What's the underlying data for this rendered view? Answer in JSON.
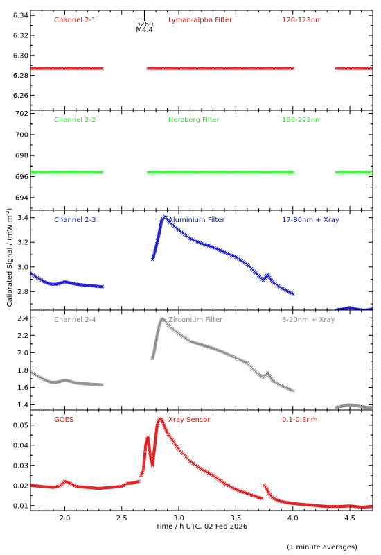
{
  "figure": {
    "ylabel": "Calibrated Signal / (mW m",
    "ylabel_sup": "-2",
    "ylabel_end": ")",
    "xlabel": "Time / h UTC, 02 Feb 2026",
    "footnote": "(1 minute averages)",
    "flare_marker": {
      "x": 2.7,
      "label1": "3260",
      "label2": "M4.4"
    },
    "x_ticks": [
      "2.0",
      "2.5",
      "3.0",
      "3.5",
      "4.0",
      "4.5"
    ],
    "xlim": [
      1.7,
      4.7
    ]
  },
  "chart_data": [
    {
      "type": "scatter",
      "channel": "Channel 2-1",
      "filter": "Lyman-alpha Filter",
      "band": "120-123nm",
      "color": "#dd1111",
      "ylim": [
        6.245,
        6.345
      ],
      "y_ticks": [
        "6.26",
        "6.28",
        "6.30",
        "6.32",
        "6.34"
      ],
      "series": [
        {
          "segments": [
            {
              "x": [
                1.7,
                2.33
              ],
              "y": [
                6.287,
                6.287
              ]
            },
            {
              "x": [
                2.73,
                4.0
              ],
              "y": [
                6.287,
                6.287
              ]
            },
            {
              "x": [
                4.38,
                4.7
              ],
              "y": [
                6.287,
                6.287
              ]
            }
          ]
        }
      ]
    },
    {
      "type": "scatter",
      "channel": "Channel 2-2",
      "filter": "Herzberg Filter",
      "band": "190-222nm",
      "color": "#22ee22",
      "ylim": [
        692.8,
        702.3
      ],
      "y_ticks": [
        "694",
        "696",
        "698",
        "700",
        "702"
      ],
      "series": [
        {
          "segments": [
            {
              "x": [
                1.7,
                2.33
              ],
              "y": [
                696.4,
                696.4
              ]
            },
            {
              "x": [
                2.73,
                4.0
              ],
              "y": [
                696.4,
                696.4
              ]
            },
            {
              "x": [
                4.38,
                4.7
              ],
              "y": [
                696.4,
                696.4
              ]
            }
          ]
        }
      ]
    },
    {
      "type": "scatter",
      "channel": "Channel 2-3",
      "filter": "Aluminium Filter",
      "band": "17-80nm + Xray",
      "color": "#1111cc",
      "ylim": [
        2.65,
        3.46
      ],
      "y_ticks": [
        "2.8",
        "3.0",
        "3.2",
        "3.4"
      ],
      "series": [
        {
          "segments": [
            {
              "x": [
                1.7,
                1.75,
                1.82,
                1.88,
                1.93,
                2.0,
                2.05,
                2.1,
                2.2,
                2.33
              ],
              "y": [
                2.95,
                2.92,
                2.88,
                2.86,
                2.86,
                2.88,
                2.87,
                2.86,
                2.85,
                2.84
              ]
            },
            {
              "x": [
                2.77,
                2.79,
                2.81,
                2.83,
                2.85,
                2.88,
                2.92,
                3.0,
                3.1,
                3.2,
                3.3,
                3.4,
                3.5,
                3.6,
                3.7,
                3.74,
                3.78,
                3.82,
                3.9,
                4.0
              ],
              "y": [
                3.06,
                3.12,
                3.2,
                3.28,
                3.38,
                3.41,
                3.36,
                3.3,
                3.23,
                3.19,
                3.16,
                3.12,
                3.08,
                3.02,
                2.93,
                2.89,
                2.94,
                2.88,
                2.83,
                2.78
              ]
            },
            {
              "x": [
                4.38,
                4.45,
                4.5,
                4.55,
                4.6,
                4.65,
                4.7
              ],
              "y": [
                2.65,
                2.66,
                2.67,
                2.66,
                2.65,
                2.65,
                2.66
              ]
            }
          ]
        }
      ]
    },
    {
      "type": "scatter",
      "channel": "Channel 2-4",
      "filter": "Zirconium Filter",
      "band": "6-20nm + Xray",
      "color": "#888888",
      "ylim": [
        1.34,
        2.49
      ],
      "y_ticks": [
        "1.4",
        "1.6",
        "1.8",
        "2.0",
        "2.2",
        "2.4"
      ],
      "series": [
        {
          "segments": [
            {
              "x": [
                1.7,
                1.75,
                1.82,
                1.88,
                1.93,
                2.0,
                2.05,
                2.1,
                2.2,
                2.33
              ],
              "y": [
                1.78,
                1.74,
                1.69,
                1.66,
                1.66,
                1.68,
                1.67,
                1.65,
                1.64,
                1.63
              ]
            },
            {
              "x": [
                2.77,
                2.79,
                2.81,
                2.83,
                2.85,
                2.88,
                2.92,
                3.0,
                3.1,
                3.2,
                3.3,
                3.4,
                3.5,
                3.6,
                3.7,
                3.74,
                3.78,
                3.82,
                3.9,
                4.0
              ],
              "y": [
                1.93,
                2.05,
                2.2,
                2.32,
                2.39,
                2.37,
                2.3,
                2.22,
                2.13,
                2.09,
                2.05,
                2.0,
                1.94,
                1.88,
                1.75,
                1.71,
                1.77,
                1.68,
                1.62,
                1.56
              ]
            },
            {
              "x": [
                4.38,
                4.45,
                4.5,
                4.55,
                4.6,
                4.65,
                4.7
              ],
              "y": [
                1.37,
                1.39,
                1.4,
                1.39,
                1.38,
                1.37,
                1.37
              ]
            }
          ]
        }
      ]
    },
    {
      "type": "scatter",
      "channel": "GOES",
      "filter": "Xray Sensor",
      "band": "0.1-0.8nm",
      "color": "#dd1111",
      "ylim": [
        0.0075,
        0.0575
      ],
      "y_ticks": [
        "0.01",
        "0.02",
        "0.03",
        "0.04",
        "0.05"
      ],
      "series": [
        {
          "segments": [
            {
              "x": [
                1.7,
                1.8,
                1.9,
                1.95,
                2.0,
                2.05,
                2.1,
                2.2,
                2.3,
                2.4,
                2.5,
                2.55,
                2.6,
                2.65
              ],
              "y": [
                0.02,
                0.0195,
                0.019,
                0.0195,
                0.022,
                0.021,
                0.0195,
                0.019,
                0.0185,
                0.019,
                0.0195,
                0.021,
                0.0212,
                0.022
              ]
            },
            {
              "x": [
                2.67,
                2.69,
                2.71,
                2.73,
                2.75,
                2.77,
                2.79,
                2.81,
                2.83,
                2.85,
                2.87,
                2.9,
                2.95,
                3.0,
                3.1,
                3.2,
                3.3,
                3.4,
                3.5,
                3.6,
                3.7,
                3.73
              ],
              "y": [
                0.025,
                0.028,
                0.04,
                0.044,
                0.035,
                0.03,
                0.04,
                0.05,
                0.053,
                0.053,
                0.05,
                0.046,
                0.042,
                0.038,
                0.032,
                0.028,
                0.025,
                0.021,
                0.018,
                0.016,
                0.014,
                0.0135
              ]
            },
            {
              "x": [
                3.75,
                3.77,
                3.79,
                3.83,
                3.9,
                4.0,
                4.1,
                4.2,
                4.3,
                4.4,
                4.5,
                4.6,
                4.7
              ],
              "y": [
                0.02,
                0.0185,
                0.016,
                0.0135,
                0.012,
                0.011,
                0.0105,
                0.01,
                0.0095,
                0.0095,
                0.0098,
                0.0092,
                0.0095
              ]
            }
          ]
        }
      ]
    }
  ]
}
